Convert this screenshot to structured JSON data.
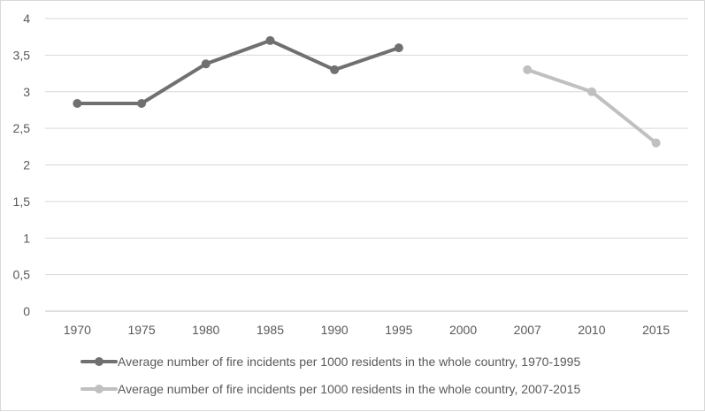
{
  "chart_data": {
    "type": "line",
    "categories": [
      "1970",
      "1975",
      "1980",
      "1985",
      "1990",
      "1995",
      "2000",
      "2007",
      "2010",
      "2015"
    ],
    "ylim": [
      0,
      4
    ],
    "yticks": [
      "0",
      "0,5",
      "1",
      "1,5",
      "2",
      "2,5",
      "3",
      "3,5",
      "4"
    ],
    "ytick_values": [
      0,
      0.5,
      1,
      1.5,
      2,
      2.5,
      3,
      3.5,
      4
    ],
    "grid": true,
    "legend_position": "bottom",
    "series": [
      {
        "name": "Average number of fire incidents per 1000 residents in the whole country, 1970-1995",
        "color": "#707070",
        "values": [
          2.84,
          2.84,
          3.38,
          3.7,
          3.3,
          3.6,
          null,
          null,
          null,
          null
        ]
      },
      {
        "name": "Average number of fire incidents per 1000 residents in the whole country, 2007-2015",
        "color": "#c0c0c0",
        "values": [
          null,
          null,
          null,
          null,
          null,
          null,
          null,
          3.3,
          3.0,
          2.3
        ]
      }
    ]
  }
}
